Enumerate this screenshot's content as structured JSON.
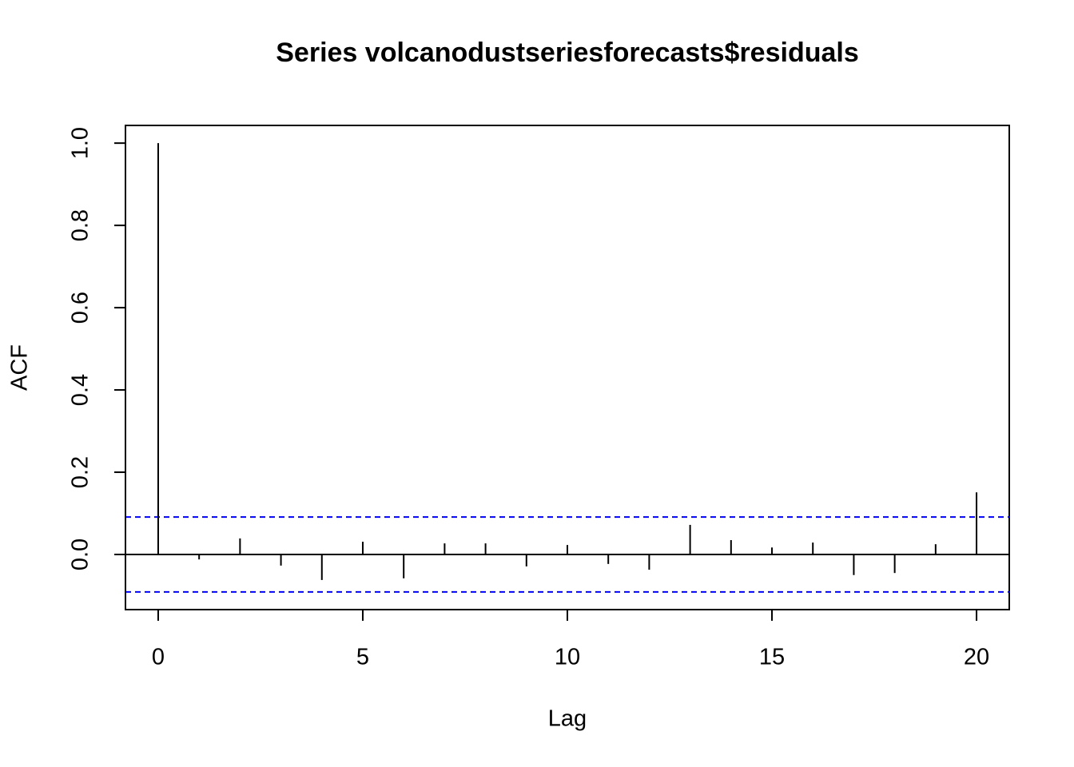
{
  "chart_data": {
    "type": "acf",
    "title": "Series  volcanodustseriesforecasts$residuals",
    "xlabel": "Lag",
    "ylabel": "ACF",
    "x": [
      0,
      1,
      2,
      3,
      4,
      5,
      6,
      7,
      8,
      9,
      10,
      11,
      12,
      13,
      14,
      15,
      16,
      17,
      18,
      19,
      20
    ],
    "values": [
      1.0,
      -0.012,
      0.039,
      -0.027,
      -0.062,
      0.031,
      -0.058,
      0.027,
      0.027,
      -0.029,
      0.023,
      -0.023,
      -0.037,
      0.072,
      0.035,
      0.017,
      0.029,
      -0.05,
      -0.045,
      0.025,
      0.151
    ],
    "color": "#000000",
    "ci_lines": [
      0.091,
      -0.091
    ],
    "ci_color": "#0000ff",
    "xlim": [
      -0.8,
      20.8
    ],
    "ylim": [
      -0.134,
      1.043
    ],
    "xticks": [
      0,
      5,
      10,
      15,
      20
    ],
    "yticks": [
      {
        "value": 0,
        "label": "0.0"
      },
      0.2,
      0.4,
      0.6,
      0.8,
      {
        "value": 1,
        "label": "1.0"
      }
    ]
  }
}
